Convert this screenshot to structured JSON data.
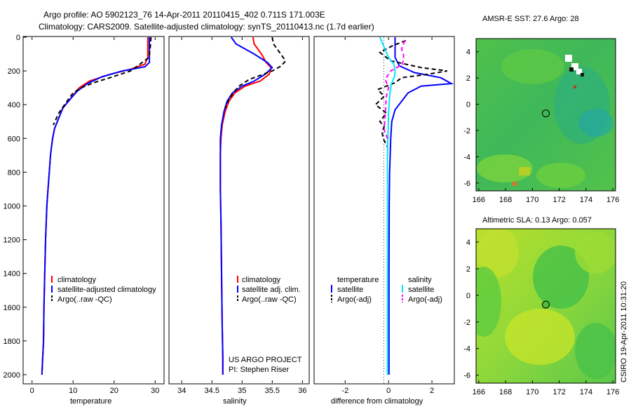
{
  "header": {
    "title_line1": "Argo profile: AO 5902123_76 14-Apr-2011 20110415_402 0.711S 171.003E",
    "title_line2": "Climatology: CARS2009. Satellite-adjusted climatology: synTS_20110413.nc (1.7d earlier)"
  },
  "colors": {
    "climatology": "#ff0000",
    "satellite": "#0000ff",
    "argo": "#000000",
    "salinity_satellite": "#00e5ff",
    "salinity_argo": "#ff00ff"
  },
  "chart_data": [
    {
      "type": "line",
      "name": "temperature",
      "xlabel": "temperature",
      "xlim": [
        -2,
        32
      ],
      "ylim": [
        0,
        2050
      ],
      "x_ticks": [
        "0",
        "10",
        "20",
        "30"
      ],
      "y_ticks": [
        "0",
        "200",
        "400",
        "600",
        "800",
        "1000",
        "1200",
        "1400",
        "1600",
        "1800",
        "2000"
      ],
      "legend": [
        "climatology",
        "satellite-adjusted climatology",
        "Argo(..raw -QC)"
      ],
      "series": [
        {
          "name": "climatology",
          "color": "#ff0000",
          "dash": false,
          "x": [
            28.2,
            28.2,
            27.5,
            24,
            19,
            14,
            11.5,
            9.5,
            7.5,
            6.5,
            5.5,
            5,
            4.5,
            4.2,
            3.9,
            3.6,
            3.3,
            3.1,
            2.9,
            2.8,
            2.6,
            2.4
          ],
          "y": [
            0,
            120,
            160,
            190,
            220,
            260,
            300,
            360,
            420,
            480,
            540,
            600,
            700,
            800,
            900,
            1000,
            1200,
            1400,
            1600,
            1800,
            1900,
            2000
          ]
        },
        {
          "name": "satellite-adjusted climatology",
          "color": "#0000ff",
          "dash": false,
          "x": [
            28.6,
            28.6,
            27.5,
            22,
            17,
            13.5,
            11,
            9.2,
            7.5,
            6.5,
            5.5,
            5,
            4.5,
            4.2,
            3.9,
            3.6,
            3.3,
            3.1,
            2.9,
            2.8,
            2.6,
            2.4
          ],
          "y": [
            0,
            150,
            175,
            200,
            235,
            275,
            320,
            370,
            420,
            480,
            540,
            600,
            700,
            800,
            900,
            1000,
            1200,
            1400,
            1600,
            1800,
            1900,
            2000
          ]
        },
        {
          "name": "Argo(..raw -QC)",
          "color": "#000000",
          "dash": true,
          "x": [
            29,
            28.8,
            28.5,
            24,
            19,
            15,
            12,
            10,
            8.5,
            6.5,
            5.2
          ],
          "y": [
            0,
            60,
            120,
            200,
            240,
            270,
            300,
            330,
            380,
            450,
            520
          ]
        }
      ]
    },
    {
      "type": "line",
      "name": "salinity",
      "xlabel": "salinity",
      "xlim": [
        33.8,
        36.1
      ],
      "ylim": [
        0,
        2050
      ],
      "x_ticks": [
        "34",
        "34.5",
        "35",
        "35.5",
        "36"
      ],
      "legend": [
        "climatology",
        "satellite adj. clim.",
        "Argo(..raw -QC)"
      ],
      "annotation_line1": "US ARGO PROJECT",
      "annotation_line2": "PI: Stephen Riser",
      "series": [
        {
          "name": "climatology",
          "color": "#ff0000",
          "dash": false,
          "x": [
            35.18,
            35.2,
            35.32,
            35.4,
            35.48,
            35.45,
            35.3,
            35.05,
            34.88,
            34.78,
            34.72,
            34.67,
            34.65,
            34.64,
            34.64,
            34.65,
            34.66,
            34.67,
            34.68,
            34.68
          ],
          "y": [
            0,
            40,
            100,
            150,
            180,
            220,
            260,
            290,
            330,
            380,
            440,
            520,
            600,
            700,
            900,
            1100,
            1400,
            1700,
            1900,
            2000
          ]
        },
        {
          "name": "satellite adj. clim.",
          "color": "#0000ff",
          "dash": false,
          "x": [
            34.82,
            34.9,
            35.2,
            35.42,
            35.5,
            35.38,
            35.2,
            35.0,
            34.84,
            34.75,
            34.7,
            34.66,
            34.64,
            34.64,
            34.64,
            34.65,
            34.66,
            34.67,
            34.68,
            34.68
          ],
          "y": [
            0,
            40,
            100,
            150,
            180,
            220,
            260,
            290,
            330,
            380,
            440,
            520,
            600,
            700,
            900,
            1100,
            1400,
            1700,
            1900,
            2000
          ]
        },
        {
          "name": "Argo(..raw -QC)",
          "color": "#000000",
          "dash": true,
          "x": [
            35.5,
            35.52,
            35.6,
            35.72,
            35.65,
            35.5,
            35.35,
            35.12,
            34.95,
            34.85,
            34.78,
            34.72
          ],
          "y": [
            0,
            40,
            80,
            140,
            170,
            200,
            220,
            250,
            290,
            330,
            370,
            420
          ]
        }
      ]
    },
    {
      "type": "line",
      "name": "difference",
      "xlabel": "difference from climatology",
      "xlim": [
        -3.4,
        3.0
      ],
      "ylim": [
        0,
        2050
      ],
      "x_ticks": [
        "-2",
        "0",
        "2"
      ],
      "legend_left_title": "temperature",
      "legend_right_title": "salinity",
      "legend_left": [
        "satellite",
        "Argo(-adj)"
      ],
      "legend_right": [
        "satellite",
        "Argo(-adj)"
      ],
      "series": [
        {
          "name": "temperature satellite",
          "color": "#0000ff",
          "dash": false,
          "x": [
            0.3,
            0.3,
            0.5,
            1.2,
            2.4,
            2.9,
            1.5,
            0.9,
            0.6,
            0.3,
            0.15,
            0.1,
            0.05,
            0.03,
            0.02,
            0.02,
            0.02
          ],
          "y": [
            0,
            120,
            170,
            210,
            240,
            275,
            290,
            330,
            380,
            430,
            500,
            600,
            800,
            1000,
            1400,
            1800,
            2000
          ]
        },
        {
          "name": "temperature Argo(-adj)",
          "color": "#000000",
          "dash": true,
          "x": [
            0.8,
            0.2,
            -0.4,
            0.1,
            1.5,
            2.7,
            1.8,
            0.6,
            0.3,
            -0.5,
            -0.2,
            -0.6,
            -0.1,
            -0.4,
            -0.2,
            -0.3,
            -0.25,
            -0.05
          ],
          "y": [
            20,
            50,
            90,
            140,
            180,
            200,
            220,
            240,
            270,
            310,
            350,
            400,
            450,
            500,
            530,
            560,
            600,
            650
          ]
        },
        {
          "name": "salinity satellite",
          "color": "#00e5ff",
          "dash": false,
          "x": [
            -0.4,
            -0.2,
            0.0,
            0.25,
            0.3,
            0.28,
            0.12,
            0.05,
            0.0,
            -0.05,
            -0.05,
            -0.05,
            -0.05
          ],
          "y": [
            0,
            60,
            120,
            160,
            200,
            230,
            280,
            350,
            450,
            700,
            1100,
            1600,
            2000
          ]
        },
        {
          "name": "salinity Argo(-adj)",
          "color": "#ff00ff",
          "dash": true,
          "x": [
            0.75,
            0.6,
            0.7,
            0.65,
            0.1,
            -0.15,
            0.0,
            -0.1,
            -0.2,
            -0.05
          ],
          "y": [
            20,
            70,
            110,
            160,
            200,
            250,
            300,
            350,
            550,
            600
          ]
        }
      ]
    },
    {
      "type": "heatmap",
      "name": "sst-map",
      "title": "AMSR-E SST: 27.6 Argo: 28",
      "x_ticks": [
        "166",
        "168",
        "170",
        "172",
        "174",
        "176"
      ],
      "y_ticks": [
        "4",
        "2",
        "0",
        "-2",
        "-4",
        "-6"
      ],
      "xlim": [
        165.8,
        176.2
      ],
      "ylim": [
        -6.6,
        5.0
      ],
      "argo_position": {
        "lon": 171.0,
        "lat": -0.7
      }
    },
    {
      "type": "heatmap",
      "name": "sla-map",
      "title": "Altimetric SLA: 0.13 Argo: 0.057",
      "x_ticks": [
        "166",
        "168",
        "170",
        "172",
        "174",
        "176"
      ],
      "y_ticks": [
        "4",
        "2",
        "0",
        "-2",
        "-4",
        "-6"
      ],
      "xlim": [
        165.8,
        176.2
      ],
      "ylim": [
        -6.6,
        5.0
      ],
      "argo_position": {
        "lon": 171.0,
        "lat": -0.7
      }
    }
  ],
  "footer": {
    "timestamp": "CSIRO 19-Apr-2011 10:31:20"
  }
}
